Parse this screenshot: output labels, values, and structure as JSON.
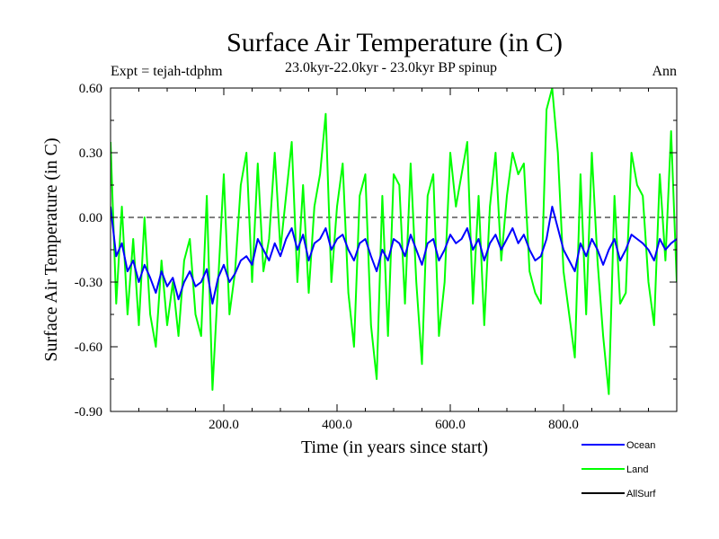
{
  "chart_data": {
    "type": "line",
    "title": "Surface Air Temperature (in C)",
    "subtitle_left": "Expt = tejah-tdphm",
    "subtitle_center": "23.0kyr-22.0kyr - 23.0kyr BP spinup",
    "subtitle_right": "Ann",
    "xlabel": "Time (in years since start)",
    "ylabel": "Surface Air Temperature (in C)",
    "xlim": [
      0,
      1000
    ],
    "ylim": [
      -0.9,
      0.6
    ],
    "x_ticks": [
      200,
      400,
      600,
      800
    ],
    "x_tick_labels": [
      "200.0",
      "400.0",
      "600.0",
      "800.0"
    ],
    "y_ticks": [
      -0.9,
      -0.6,
      -0.3,
      0.0,
      0.3,
      0.6
    ],
    "y_tick_labels": [
      "-0.90",
      "-0.60",
      "-0.30",
      "0.00",
      "0.30",
      "0.60"
    ],
    "reference_line": 0.0,
    "legend_position": "bottom-right",
    "series": [
      {
        "name": "Ocean",
        "color": "#0000ff",
        "x_start": 0,
        "x_step": 10,
        "values": [
          0.05,
          -0.18,
          -0.12,
          -0.25,
          -0.2,
          -0.3,
          -0.22,
          -0.28,
          -0.35,
          -0.25,
          -0.32,
          -0.28,
          -0.38,
          -0.3,
          -0.25,
          -0.32,
          -0.3,
          -0.24,
          -0.4,
          -0.28,
          -0.22,
          -0.3,
          -0.26,
          -0.2,
          -0.18,
          -0.22,
          -0.1,
          -0.15,
          -0.2,
          -0.12,
          -0.18,
          -0.1,
          -0.05,
          -0.15,
          -0.08,
          -0.2,
          -0.12,
          -0.1,
          -0.05,
          -0.15,
          -0.1,
          -0.08,
          -0.15,
          -0.2,
          -0.12,
          -0.1,
          -0.18,
          -0.25,
          -0.15,
          -0.2,
          -0.1,
          -0.12,
          -0.18,
          -0.08,
          -0.15,
          -0.22,
          -0.12,
          -0.1,
          -0.2,
          -0.15,
          -0.08,
          -0.12,
          -0.1,
          -0.05,
          -0.15,
          -0.1,
          -0.2,
          -0.12,
          -0.08,
          -0.15,
          -0.1,
          -0.05,
          -0.12,
          -0.08,
          -0.15,
          -0.2,
          -0.18,
          -0.1,
          0.05,
          -0.05,
          -0.15,
          -0.2,
          -0.25,
          -0.12,
          -0.18,
          -0.1,
          -0.15,
          -0.22,
          -0.15,
          -0.1,
          -0.2,
          -0.15,
          -0.08,
          -0.1,
          -0.12,
          -0.15,
          -0.2,
          -0.1,
          -0.15,
          -0.12,
          -0.1
        ]
      },
      {
        "name": "Land",
        "color": "#00ff00",
        "x_start": 0,
        "x_step": 10,
        "values": [
          0.35,
          -0.4,
          0.05,
          -0.45,
          -0.1,
          -0.5,
          0.0,
          -0.45,
          -0.6,
          -0.2,
          -0.5,
          -0.3,
          -0.55,
          -0.2,
          -0.1,
          -0.45,
          -0.55,
          0.1,
          -0.8,
          -0.3,
          0.2,
          -0.45,
          -0.25,
          0.15,
          0.3,
          -0.3,
          0.25,
          -0.25,
          -0.1,
          0.3,
          -0.15,
          0.1,
          0.35,
          -0.3,
          0.15,
          -0.35,
          0.05,
          0.2,
          0.48,
          -0.3,
          0.05,
          0.25,
          -0.35,
          -0.6,
          0.1,
          0.2,
          -0.5,
          -0.75,
          0.1,
          -0.55,
          0.2,
          0.15,
          -0.4,
          0.25,
          -0.3,
          -0.68,
          0.1,
          0.2,
          -0.55,
          -0.3,
          0.3,
          0.05,
          0.2,
          0.35,
          -0.4,
          0.1,
          -0.5,
          0.05,
          0.3,
          -0.2,
          0.1,
          0.3,
          0.2,
          0.25,
          -0.25,
          -0.35,
          -0.4,
          0.5,
          0.6,
          0.3,
          -0.25,
          -0.45,
          -0.65,
          0.2,
          -0.45,
          0.3,
          -0.2,
          -0.55,
          -0.82,
          0.1,
          -0.4,
          -0.35,
          0.3,
          0.15,
          0.1,
          -0.3,
          -0.5,
          0.2,
          -0.2,
          0.4,
          -0.3
        ]
      },
      {
        "name": "AllSurf",
        "color": "#000000",
        "x_start": 0,
        "x_step": 10,
        "values": []
      }
    ]
  }
}
